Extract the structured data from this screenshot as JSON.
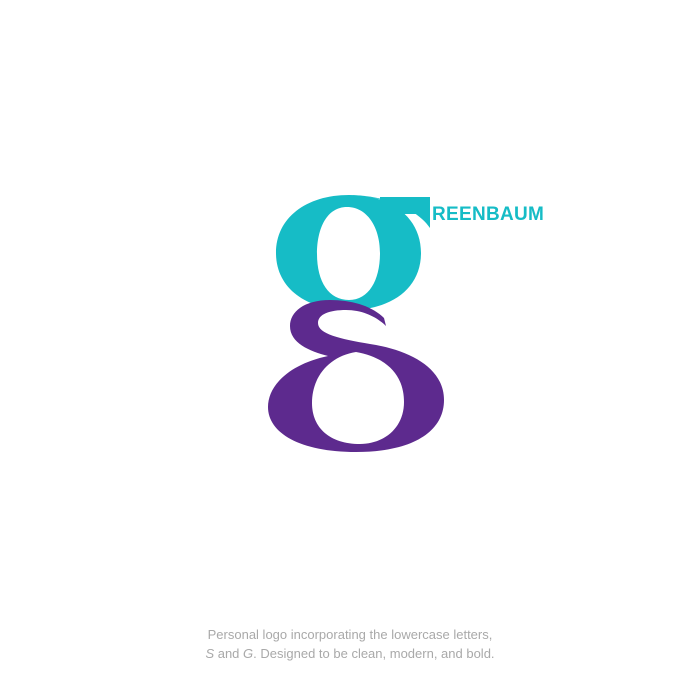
{
  "logo": {
    "wordmark": "REENBAUM",
    "colors": {
      "teal": "#16bcc6",
      "purple": "#5d2a8e",
      "background": "#ffffff",
      "caption": "#a9a9a9"
    }
  },
  "caption": {
    "line1": "Personal logo incorporating the lowercase letters,",
    "line2_s": "S",
    "line2_and": " and ",
    "line2_g": "G",
    "line2_rest": ". Designed to be clean, modern, and bold."
  }
}
